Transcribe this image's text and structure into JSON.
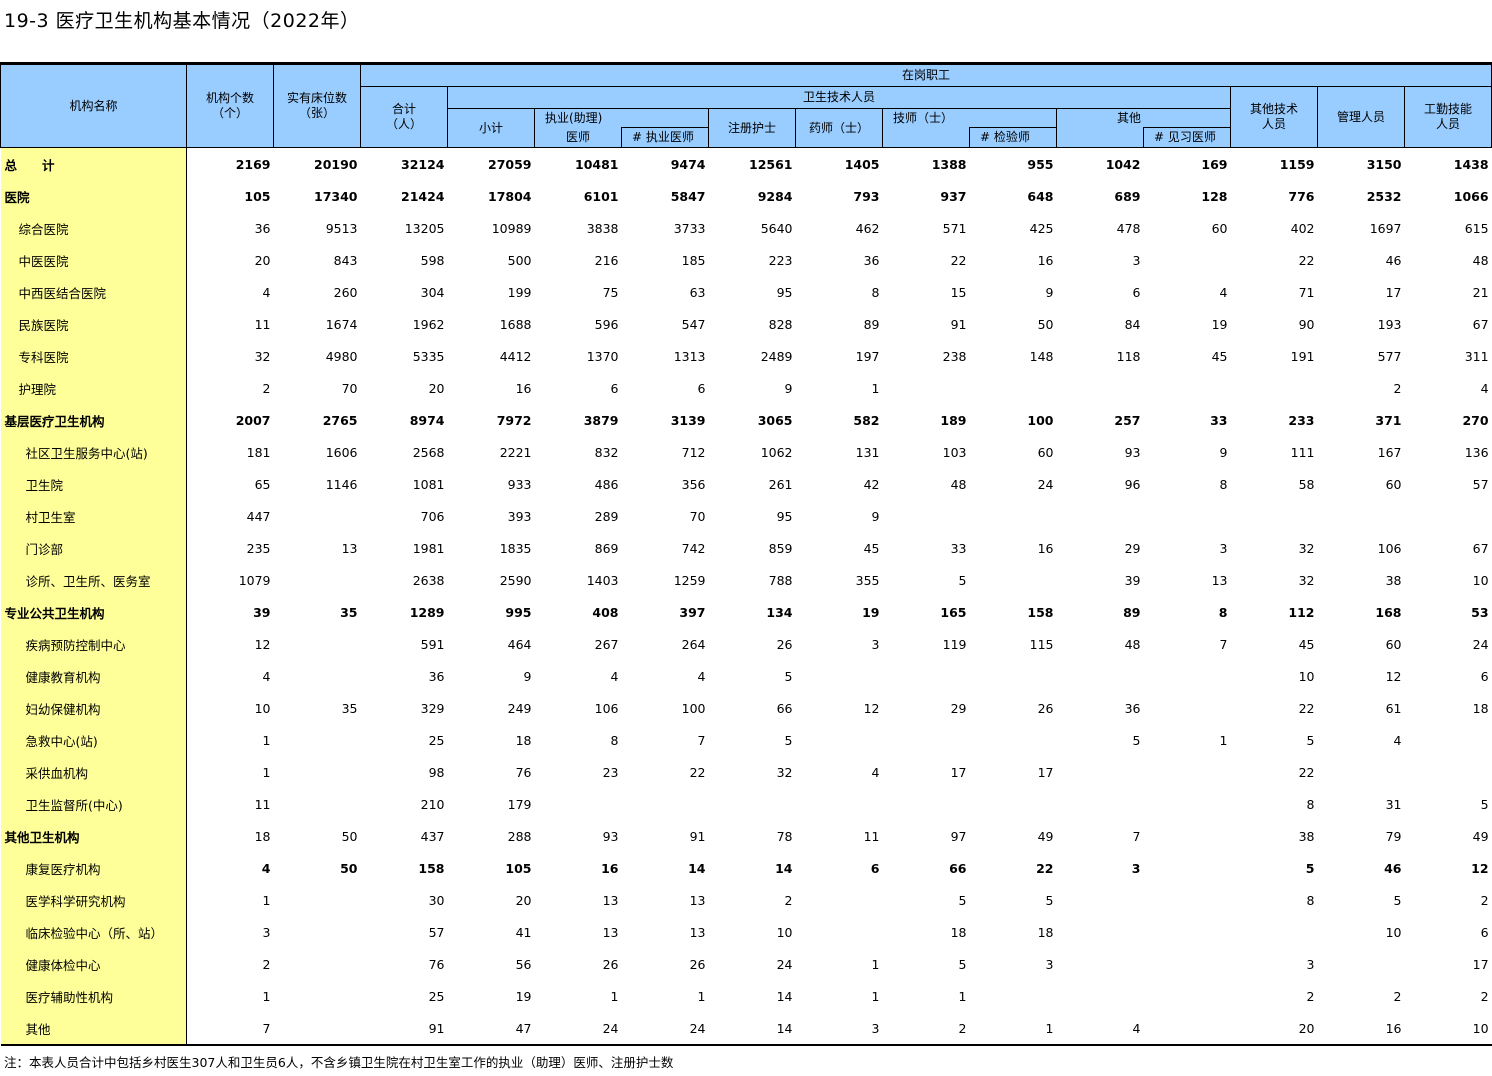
{
  "title": "19-3 医疗卫生机构基本情况（2022年）",
  "header": {
    "name": "机构名称",
    "count": [
      "机构个数",
      "（个）"
    ],
    "beds": [
      "实有床位数",
      "（张）"
    ],
    "staff": "在岗职工",
    "total": [
      "合计",
      "（人）"
    ],
    "health_tech": "卫生技术人员",
    "subtotal": "小计",
    "physician": [
      "执业(助理)",
      "医师"
    ],
    "licensed_physician": "# 执业医师",
    "nurse": "注册护士",
    "pharmacist": "药师（士）",
    "technician": "技师（士）",
    "lab": "# 检验师",
    "other": "其他",
    "intern": "# 见习医师",
    "other_tech": [
      "其他技术",
      "人员"
    ],
    "admin": "管理人员",
    "worker": [
      "工勤技能",
      "人员"
    ]
  },
  "rows": [
    {
      "name": "总　　计",
      "level": 0,
      "name_bold": true,
      "num_bold": true,
      "values": [
        "2169",
        "20190",
        "32124",
        "27059",
        "10481",
        "9474",
        "12561",
        "1405",
        "1388",
        "955",
        "1042",
        "169",
        "1159",
        "3150",
        "1438"
      ]
    },
    {
      "name": "医院",
      "level": 0,
      "name_bold": true,
      "num_bold": true,
      "values": [
        "105",
        "17340",
        "21424",
        "17804",
        "6101",
        "5847",
        "9284",
        "793",
        "937",
        "648",
        "689",
        "128",
        "776",
        "2532",
        "1066"
      ]
    },
    {
      "name": "综合医院",
      "level": 1,
      "values": [
        "36",
        "9513",
        "13205",
        "10989",
        "3838",
        "3733",
        "5640",
        "462",
        "571",
        "425",
        "478",
        "60",
        "402",
        "1697",
        "615"
      ]
    },
    {
      "name": "中医医院",
      "level": 1,
      "values": [
        "20",
        "843",
        "598",
        "500",
        "216",
        "185",
        "223",
        "36",
        "22",
        "16",
        "3",
        "",
        "22",
        "46",
        "48"
      ]
    },
    {
      "name": "中西医结合医院",
      "level": 1,
      "values": [
        "4",
        "260",
        "304",
        "199",
        "75",
        "63",
        "95",
        "8",
        "15",
        "9",
        "6",
        "4",
        "71",
        "17",
        "21"
      ]
    },
    {
      "name": "民族医院",
      "level": 1,
      "values": [
        "11",
        "1674",
        "1962",
        "1688",
        "596",
        "547",
        "828",
        "89",
        "91",
        "50",
        "84",
        "19",
        "90",
        "193",
        "67"
      ]
    },
    {
      "name": "专科医院",
      "level": 1,
      "values": [
        "32",
        "4980",
        "5335",
        "4412",
        "1370",
        "1313",
        "2489",
        "197",
        "238",
        "148",
        "118",
        "45",
        "191",
        "577",
        "311"
      ]
    },
    {
      "name": "护理院",
      "level": 1,
      "values": [
        "2",
        "70",
        "20",
        "16",
        "6",
        "6",
        "9",
        "1",
        "",
        "",
        "",
        "",
        "",
        "2",
        "4"
      ]
    },
    {
      "name": "基层医疗卫生机构",
      "level": 0,
      "name_bold": true,
      "num_bold": true,
      "values": [
        "2007",
        "2765",
        "8974",
        "7972",
        "3879",
        "3139",
        "3065",
        "582",
        "189",
        "100",
        "257",
        "33",
        "233",
        "371",
        "270"
      ]
    },
    {
      "name": "社区卫生服务中心(站)",
      "level": 2,
      "values": [
        "181",
        "1606",
        "2568",
        "2221",
        "832",
        "712",
        "1062",
        "131",
        "103",
        "60",
        "93",
        "9",
        "111",
        "167",
        "136"
      ]
    },
    {
      "name": "卫生院",
      "level": 2,
      "values": [
        "65",
        "1146",
        "1081",
        "933",
        "486",
        "356",
        "261",
        "42",
        "48",
        "24",
        "96",
        "8",
        "58",
        "60",
        "57"
      ]
    },
    {
      "name": "村卫生室",
      "level": 2,
      "values": [
        "447",
        "",
        "706",
        "393",
        "289",
        "70",
        "95",
        "9",
        "",
        "",
        "",
        "",
        "",
        "",
        ""
      ]
    },
    {
      "name": "门诊部",
      "level": 2,
      "values": [
        "235",
        "13",
        "1981",
        "1835",
        "869",
        "742",
        "859",
        "45",
        "33",
        "16",
        "29",
        "3",
        "32",
        "106",
        "67"
      ]
    },
    {
      "name": "诊所、卫生所、医务室",
      "level": 2,
      "values": [
        "1079",
        "",
        "2638",
        "2590",
        "1403",
        "1259",
        "788",
        "355",
        "5",
        "",
        "39",
        "13",
        "32",
        "38",
        "10"
      ]
    },
    {
      "name": "专业公共卫生机构",
      "level": 0,
      "name_bold": true,
      "num_bold": true,
      "values": [
        "39",
        "35",
        "1289",
        "995",
        "408",
        "397",
        "134",
        "19",
        "165",
        "158",
        "89",
        "8",
        "112",
        "168",
        "53"
      ]
    },
    {
      "name": "疾病预防控制中心",
      "level": 2,
      "values": [
        "12",
        "",
        "591",
        "464",
        "267",
        "264",
        "26",
        "3",
        "119",
        "115",
        "48",
        "7",
        "45",
        "60",
        "24"
      ]
    },
    {
      "name": "健康教育机构",
      "level": 2,
      "values": [
        "4",
        "",
        "36",
        "9",
        "4",
        "4",
        "5",
        "",
        "",
        "",
        "",
        "",
        "10",
        "12",
        "6"
      ]
    },
    {
      "name": "妇幼保健机构",
      "level": 2,
      "values": [
        "10",
        "35",
        "329",
        "249",
        "106",
        "100",
        "66",
        "12",
        "29",
        "26",
        "36",
        "",
        "22",
        "61",
        "18"
      ]
    },
    {
      "name": "急救中心(站)",
      "level": 2,
      "values": [
        "1",
        "",
        "25",
        "18",
        "8",
        "7",
        "5",
        "",
        "",
        "",
        "5",
        "1",
        "5",
        "4",
        ""
      ]
    },
    {
      "name": "采供血机构",
      "level": 2,
      "values": [
        "1",
        "",
        "98",
        "76",
        "23",
        "22",
        "32",
        "4",
        "17",
        "17",
        "",
        "",
        "22",
        "",
        ""
      ]
    },
    {
      "name": "卫生监督所(中心)",
      "level": 2,
      "values": [
        "11",
        "",
        "210",
        "179",
        "",
        "",
        "",
        "",
        "",
        "",
        "",
        "",
        "8",
        "31",
        "5"
      ]
    },
    {
      "name": "其他卫生机构",
      "level": 0,
      "name_bold": true,
      "num_bold": false,
      "values": [
        "18",
        "50",
        "437",
        "288",
        "93",
        "91",
        "78",
        "11",
        "97",
        "49",
        "7",
        "",
        "38",
        "79",
        "49"
      ]
    },
    {
      "name": "康复医疗机构",
      "level": 2,
      "num_bold": true,
      "values": [
        "4",
        "50",
        "158",
        "105",
        "16",
        "14",
        "14",
        "6",
        "66",
        "22",
        "3",
        "",
        "5",
        "46",
        "12"
      ]
    },
    {
      "name": "医学科学研究机构",
      "level": 2,
      "values": [
        "1",
        "",
        "30",
        "20",
        "13",
        "13",
        "2",
        "",
        "5",
        "5",
        "",
        "",
        "8",
        "5",
        "2"
      ]
    },
    {
      "name": "临床检验中心（所、站）",
      "level": 2,
      "values": [
        "3",
        "",
        "57",
        "41",
        "13",
        "13",
        "10",
        "",
        "18",
        "18",
        "",
        "",
        "",
        "10",
        "6"
      ]
    },
    {
      "name": "健康体检中心",
      "level": 2,
      "values": [
        "2",
        "",
        "76",
        "56",
        "26",
        "26",
        "24",
        "1",
        "5",
        "3",
        "",
        "",
        "3",
        "",
        "17"
      ]
    },
    {
      "name": "医疗辅助性机构",
      "level": 2,
      "values": [
        "1",
        "",
        "25",
        "19",
        "1",
        "1",
        "14",
        "1",
        "1",
        "",
        "",
        "",
        "2",
        "2",
        "2"
      ]
    },
    {
      "name": "其他",
      "level": 2,
      "values": [
        "7",
        "",
        "91",
        "47",
        "24",
        "24",
        "14",
        "3",
        "2",
        "1",
        "4",
        "",
        "20",
        "16",
        "10"
      ]
    }
  ],
  "note": "注：本表人员合计中包括乡村医生307人和卫生员6人，不含乡镇卫生院在村卫生室工作的执业（助理）医师、注册护士数",
  "colors": {
    "header_bg": "#99ccff",
    "name_col_bg": "#ffff99"
  }
}
